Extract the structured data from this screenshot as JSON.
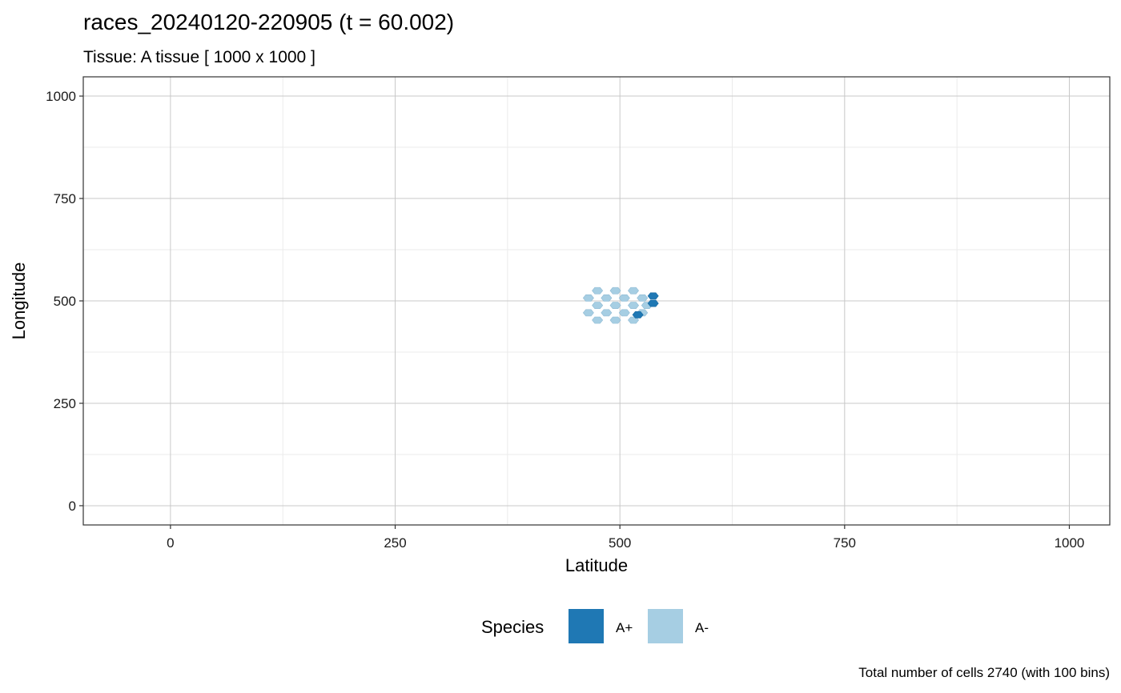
{
  "chart_data": {
    "type": "heatmap",
    "title": "races_20240120-220905 (t = 60.002)",
    "subtitle": "Tissue: A tissue [ 1000 x 1000 ]",
    "xlabel": "Latitude",
    "ylabel": "Longitude",
    "xlim": [
      -97,
      1045
    ],
    "ylim": [
      -47,
      1047
    ],
    "xticks": [
      0,
      250,
      500,
      750,
      1000
    ],
    "yticks": [
      0,
      250,
      500,
      750,
      1000
    ],
    "grid": true,
    "bins": 100,
    "legend": {
      "title": "Species",
      "position": "bottom",
      "entries": [
        {
          "label": "A+",
          "color": "#1f78b4"
        },
        {
          "label": "A-",
          "color": "#a6cee3"
        }
      ]
    },
    "series": [
      {
        "name": "A-",
        "color": "#a6cee3",
        "points": [
          [
            475,
            525
          ],
          [
            495,
            525
          ],
          [
            515,
            525
          ],
          [
            465,
            507
          ],
          [
            485,
            507
          ],
          [
            505,
            507
          ],
          [
            525,
            507
          ],
          [
            475,
            489
          ],
          [
            495,
            489
          ],
          [
            515,
            489
          ],
          [
            530,
            489
          ],
          [
            465,
            471
          ],
          [
            485,
            471
          ],
          [
            505,
            471
          ],
          [
            525,
            471
          ],
          [
            475,
            453
          ],
          [
            495,
            453
          ],
          [
            515,
            453
          ]
        ]
      },
      {
        "name": "A+",
        "color": "#1f78b4",
        "points": [
          [
            537,
            512
          ],
          [
            537,
            494
          ],
          [
            520,
            466
          ]
        ]
      }
    ],
    "caption": "Total number of cells 2740 (with 100 bins)"
  }
}
